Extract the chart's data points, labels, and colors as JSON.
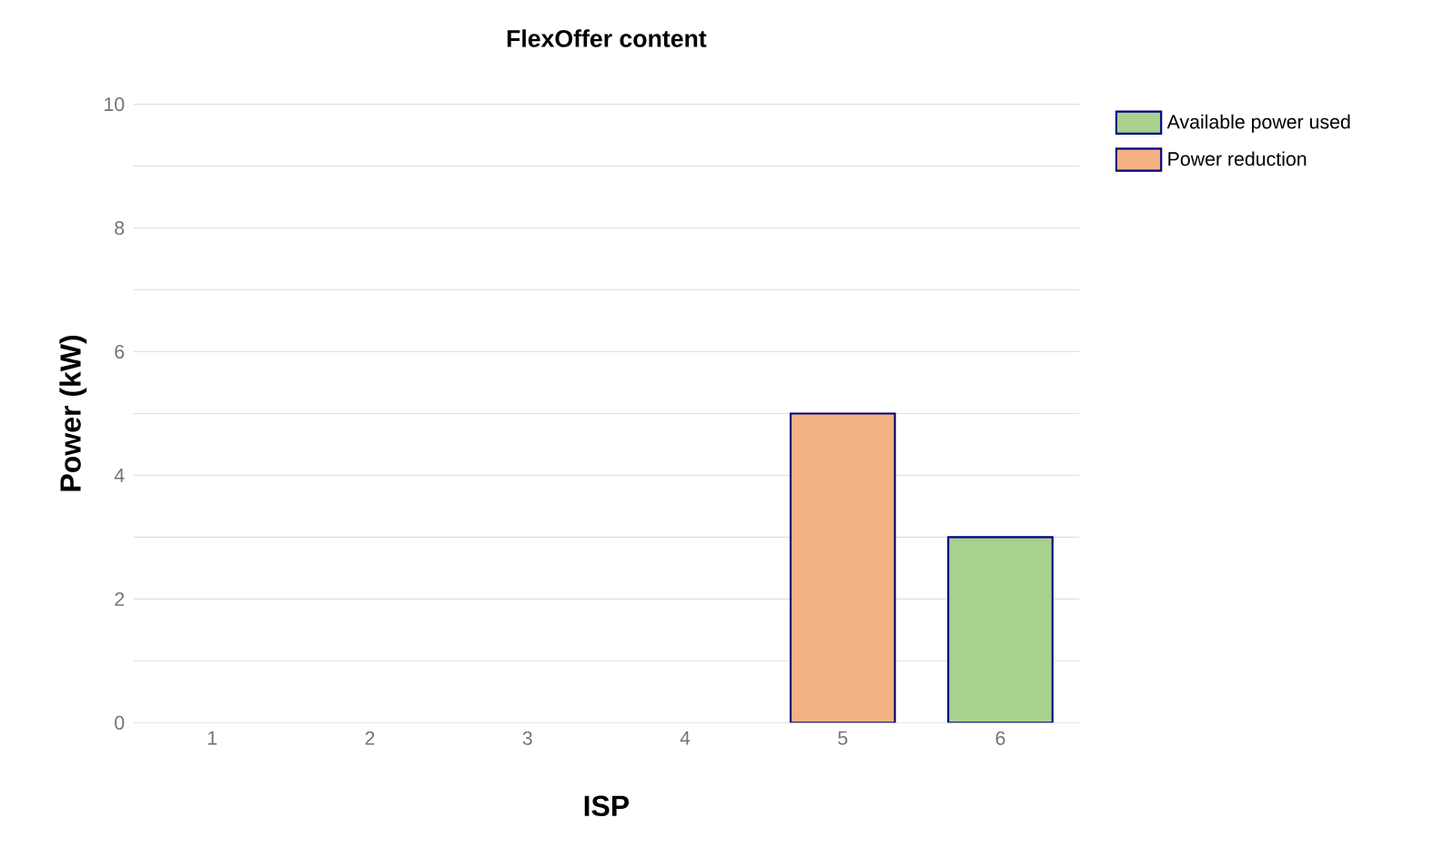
{
  "chart_data": {
    "type": "bar",
    "title": "FlexOffer content",
    "xlabel": "ISP",
    "ylabel": "Power (kW)",
    "categories": [
      "1",
      "2",
      "3",
      "4",
      "5",
      "6"
    ],
    "stacked": true,
    "series": [
      {
        "name": "Available power used",
        "color": "#a9d18e",
        "values": [
          0,
          0,
          0,
          0,
          0,
          3
        ]
      },
      {
        "name": "Power reduction",
        "color": "#f4b183",
        "values": [
          0,
          0,
          0,
          0,
          5,
          0
        ]
      }
    ],
    "ylim": [
      0,
      10
    ],
    "yticks": [
      0,
      {
        "value": 1,
        "label": null
      },
      2,
      {
        "value": 3,
        "label": null
      },
      4,
      {
        "value": 5,
        "label": null
      },
      6,
      {
        "value": 7,
        "label": null
      },
      8,
      {
        "value": 9,
        "label": null
      },
      10
    ],
    "grid": "y",
    "legend": "top right"
  }
}
